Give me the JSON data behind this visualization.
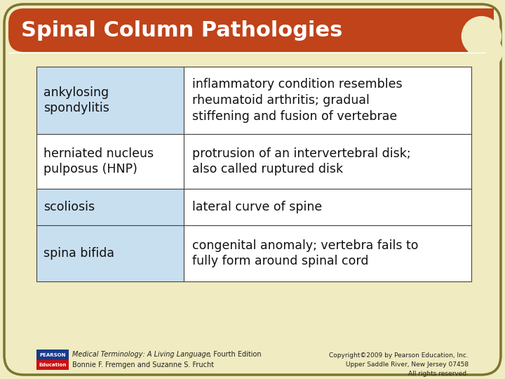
{
  "title": "Spinal Column Pathologies",
  "title_color": "#FFFFFF",
  "title_bg_color": "#C0431A",
  "bg_color": "#F0EBC0",
  "border_color": "#7A7530",
  "table_rows": [
    {
      "term": "ankylosing\nspondylitis",
      "definition": "inflammatory condition resembles\nrheumatoid arthritis; gradual\nstiffening and fusion of vertebrae",
      "term_bg": "#C8DFF0",
      "def_bg": "#FFFFFF"
    },
    {
      "term": "herniated nucleus\npulposus (HNP)",
      "definition": "protrusion of an intervertebral disk;\nalso called ruptured disk",
      "term_bg": "#FFFFFF",
      "def_bg": "#FFFFFF"
    },
    {
      "term": "scoliosis",
      "definition": "lateral curve of spine",
      "term_bg": "#C8DFF0",
      "def_bg": "#FFFFFF"
    },
    {
      "term": "spina bifida",
      "definition": "congenital anomaly; vertebra fails to\nfully form around spinal cord",
      "term_bg": "#C8DFF0",
      "def_bg": "#FFFFFF"
    }
  ],
  "table_border_color": "#444444",
  "text_color": "#111111",
  "footer_left_italic": "Medical Terminology: A Living Language",
  "footer_left_plain": ", Fourth Edition",
  "footer_left2": "Bonnie F. Fremgen and Suzanne S. Frucht",
  "footer_right": "Copyright©2009 by Pearson Education, Inc.\nUpper Saddle River, New Jersey 07458\nAll rights reserved.",
  "pearson_box_color1": "#1A3A8C",
  "pearson_box_color2": "#CC1111",
  "fig_w": 7.2,
  "fig_h": 5.4,
  "dpi": 100
}
